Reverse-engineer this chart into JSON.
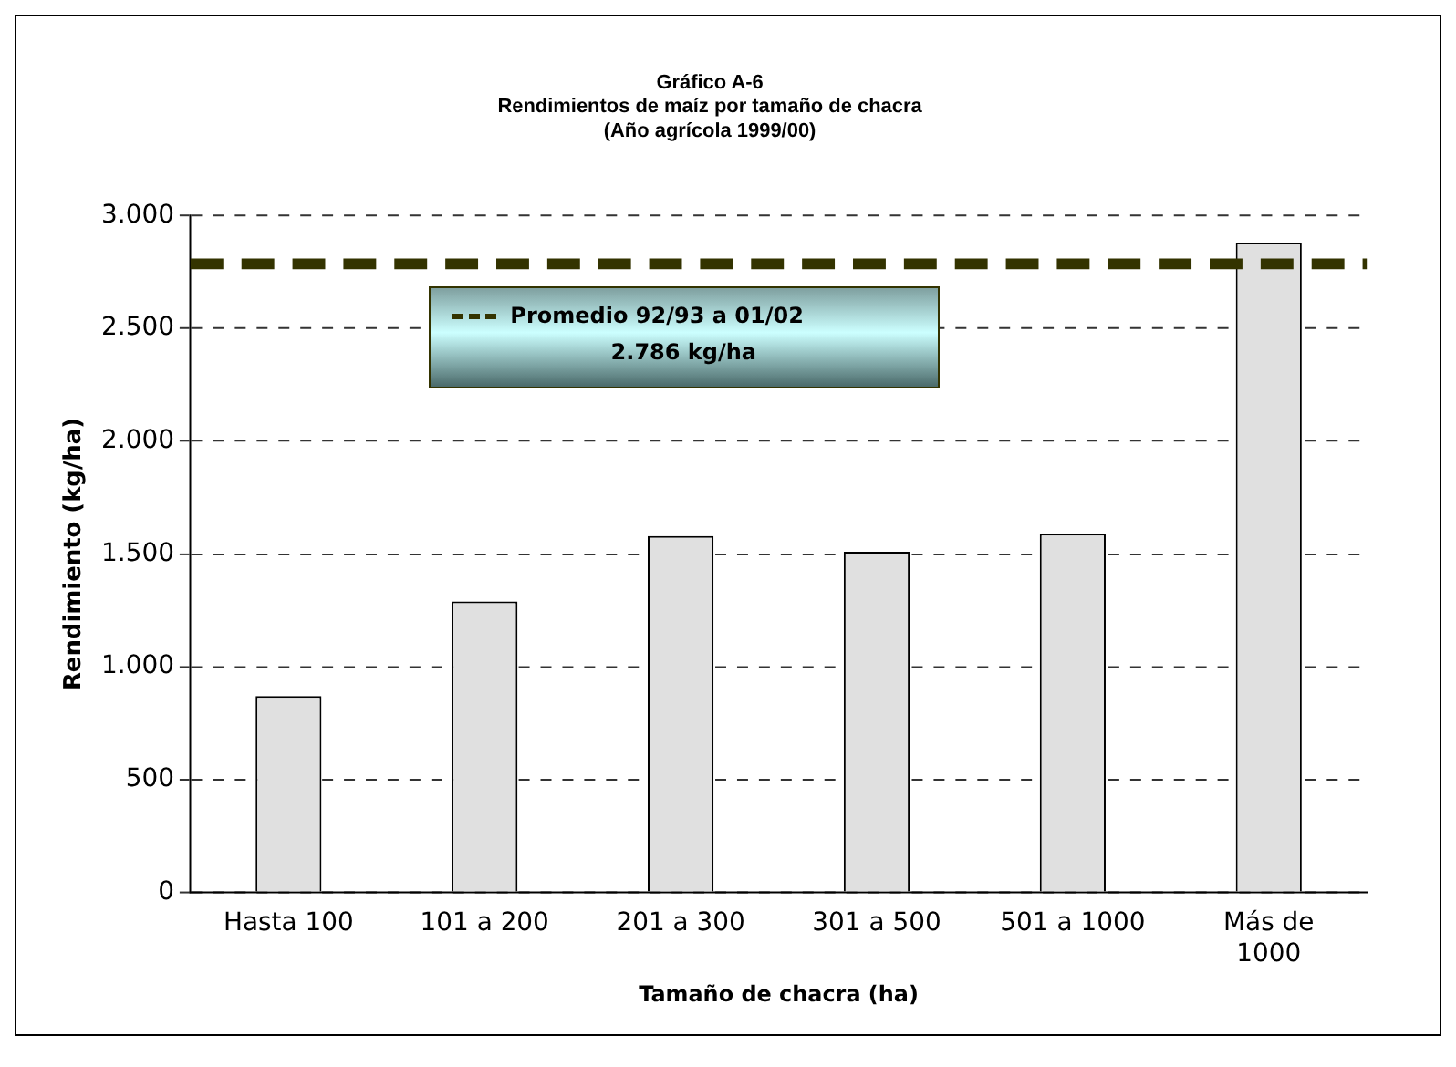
{
  "chart_data": {
    "type": "bar",
    "title": [
      "Gráfico A-6",
      "Rendimientos de maíz por tamaño de chacra",
      "(Año agrícola 1999/00)"
    ],
    "xlabel": "Tamaño de chacra (ha)",
    "ylabel": "Rendimiento (kg/ha)",
    "categories": [
      "Hasta 100",
      "101 a 200",
      "201 a 300",
      "301 a 500",
      "501 a 1000",
      "Más de 1000"
    ],
    "values": [
      870,
      1290,
      1580,
      1510,
      1590,
      2880
    ],
    "color": "#e0e0e0",
    "ylim": [
      0,
      3000
    ],
    "yticks": [
      {
        "value": 0,
        "label": "0"
      },
      {
        "value": 500,
        "label": "500"
      },
      {
        "value": 1000,
        "label": "1.000"
      },
      {
        "value": 1500,
        "label": "1.500"
      },
      {
        "value": 2000,
        "label": "2.000"
      },
      {
        "value": 2500,
        "label": "2.500"
      },
      {
        "value": 3000,
        "label": "3.000"
      }
    ],
    "grid": "y",
    "ref_lines": [
      {
        "axis": "y",
        "value": 2786,
        "label": "Promedio 92/93 a 01/02",
        "color": "#333300",
        "line_style": "dashed"
      }
    ],
    "annotations": [
      "2.786 kg/ha"
    ]
  }
}
